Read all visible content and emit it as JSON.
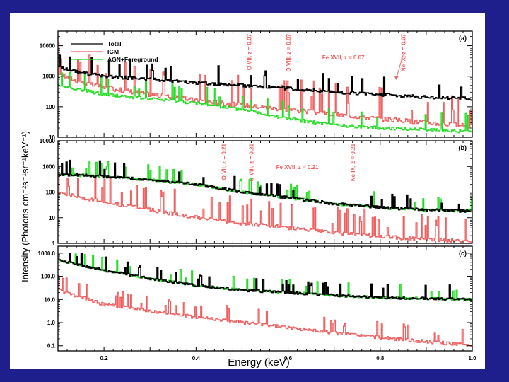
{
  "chart_data": {
    "type": "line",
    "xlabel": "Energy (keV)",
    "ylabel": "Intensity (Photons cm⁻²s⁻¹sr⁻¹keV⁻¹)",
    "xlim": [
      0.1,
      1.0
    ],
    "xticks": [
      0.2,
      0.4,
      0.6,
      0.8,
      1.0
    ],
    "xtick_labels": [
      "0.2",
      "0.4",
      "0.6",
      "0.8",
      "1.0"
    ],
    "yscale": "log",
    "legend": {
      "placement": "top-left",
      "entries": [
        {
          "name": "Total",
          "color": "#000000"
        },
        {
          "name": "IGM",
          "color": "#f06060"
        },
        {
          "name": "AGN+Foreground",
          "color": "#22dd22"
        }
      ]
    },
    "colors": {
      "total": "#000000",
      "igm": "#f06060",
      "agn": "#22dd22"
    },
    "panels": [
      {
        "label": "(a)",
        "ylim": [
          10,
          30000
        ],
        "yticks": [
          10,
          100,
          1000,
          10000
        ],
        "ytick_labels": [
          "10",
          "100",
          "1000",
          "10000"
        ],
        "series": [
          {
            "name": "Total",
            "x": [
              0.1,
              0.15,
              0.2,
              0.3,
              0.4,
              0.5,
              0.6,
              0.7,
              0.8,
              0.9,
              1.0
            ],
            "values": [
              2000,
              1300,
              1000,
              800,
              600,
              500,
              400,
              300,
              250,
              210,
              180
            ]
          },
          {
            "name": "IGM",
            "x": [
              0.1,
              0.15,
              0.2,
              0.3,
              0.4,
              0.5,
              0.6,
              0.7,
              0.8,
              0.9,
              1.0
            ],
            "values": [
              1200,
              600,
              420,
              250,
              160,
              110,
              80,
              55,
              40,
              30,
              22
            ]
          },
          {
            "name": "AGN+Foreground",
            "x": [
              0.1,
              0.15,
              0.2,
              0.3,
              0.4,
              0.5,
              0.6,
              0.7,
              0.8,
              0.9,
              1.0
            ],
            "values": [
              500,
              350,
              250,
              180,
              130,
              80,
              40,
              25,
              20,
              18,
              15
            ]
          }
        ],
        "annotations": [
          {
            "text": "O VII, z = 0.07",
            "x": 0.52,
            "rotated": true
          },
          {
            "text": "O VIII, z = 0.07",
            "x": 0.605,
            "rotated": true
          },
          {
            "text": "Fe XVII, z = 0.07",
            "x": 0.72,
            "rotated": false
          },
          {
            "text": "Ne IX, z = 0.07",
            "x": 0.855,
            "rotated": true
          }
        ]
      },
      {
        "label": "(b)",
        "ylim": [
          1,
          10000
        ],
        "yticks": [
          1,
          10,
          100,
          1000,
          10000
        ],
        "ytick_labels": [
          "1",
          "10",
          "100",
          "1000",
          "10000"
        ],
        "series": [
          {
            "name": "Total",
            "x": [
              0.1,
              0.15,
              0.2,
              0.3,
              0.4,
              0.5,
              0.6,
              0.7,
              0.8,
              0.9,
              1.0
            ],
            "values": [
              500,
              450,
              400,
              300,
              200,
              100,
              60,
              35,
              25,
              20,
              18
            ]
          },
          {
            "name": "IGM",
            "x": [
              0.1,
              0.15,
              0.2,
              0.3,
              0.4,
              0.5,
              0.6,
              0.7,
              0.8,
              0.9,
              1.0
            ],
            "values": [
              100,
              60,
              40,
              20,
              10,
              6,
              4,
              2.5,
              1.8,
              1.4,
              1.2
            ]
          },
          {
            "name": "AGN+Foreground",
            "x": [
              0.1,
              0.15,
              0.2,
              0.3,
              0.4,
              0.5,
              0.6,
              0.7,
              0.8,
              0.9,
              1.0
            ],
            "values": [
              500,
              450,
              400,
              300,
              200,
              100,
              60,
              35,
              25,
              20,
              18
            ]
          }
        ],
        "annotations": [
          {
            "text": "O VII, z = 0.21",
            "x": 0.465,
            "rotated": true
          },
          {
            "text": "O VIII, z = 0.21",
            "x": 0.525,
            "rotated": true
          },
          {
            "text": "Fe XVII, z = 0.21",
            "x": 0.62,
            "rotated": false
          },
          {
            "text": "Ne IX, z = 0.21",
            "x": 0.745,
            "rotated": true
          }
        ]
      },
      {
        "label": "(c)",
        "ylim": [
          0.06,
          2000
        ],
        "yticks": [
          0.1,
          1.0,
          10.0,
          100.0,
          1000.0
        ],
        "ytick_labels": [
          "0.1",
          "1.0",
          "10.0",
          "100.0",
          "1000.0"
        ],
        "series": [
          {
            "name": "Total",
            "x": [
              0.1,
              0.15,
              0.2,
              0.3,
              0.4,
              0.5,
              0.6,
              0.7,
              0.8,
              0.9,
              1.0
            ],
            "values": [
              500,
              300,
              180,
              80,
              40,
              25,
              20,
              15,
              12,
              11,
              10
            ]
          },
          {
            "name": "IGM",
            "x": [
              0.1,
              0.15,
              0.2,
              0.3,
              0.4,
              0.5,
              0.6,
              0.7,
              0.8,
              0.9,
              1.0
            ],
            "values": [
              25,
              12,
              6,
              3,
              1.7,
              1.0,
              0.6,
              0.35,
              0.22,
              0.15,
              0.1
            ]
          },
          {
            "name": "AGN+Foreground",
            "x": [
              0.1,
              0.15,
              0.2,
              0.3,
              0.4,
              0.5,
              0.6,
              0.7,
              0.8,
              0.9,
              1.0
            ],
            "values": [
              500,
              300,
              180,
              80,
              40,
              25,
              20,
              15,
              12,
              11,
              10
            ]
          }
        ],
        "annotations": []
      }
    ]
  }
}
